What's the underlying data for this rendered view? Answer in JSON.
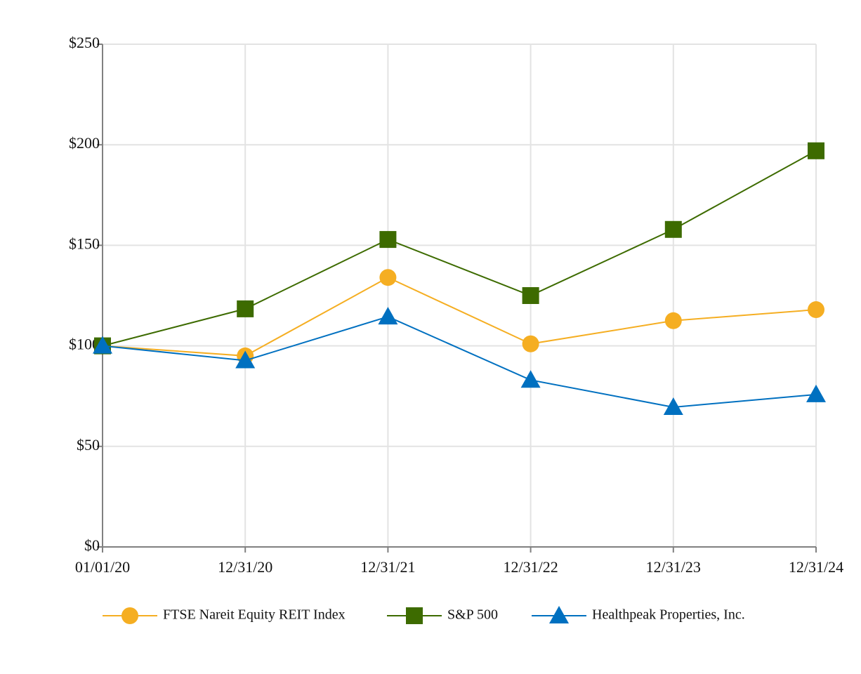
{
  "chart_data": {
    "type": "line",
    "categories": [
      "01/01/20",
      "12/31/20",
      "12/31/21",
      "12/31/22",
      "12/31/23",
      "12/31/24"
    ],
    "series": [
      {
        "name": "FTSE Nareit Equity REIT Index",
        "color": "#f5ae22",
        "marker": "circle",
        "values": [
          100,
          95,
          134,
          101,
          112.5,
          118
        ]
      },
      {
        "name": "S&P 500",
        "color": "#3d6b00",
        "marker": "square",
        "values": [
          100,
          118.4,
          152.9,
          125,
          157.9,
          197
        ]
      },
      {
        "name": "Healthpeak Properties, Inc.",
        "color": "#0070c0",
        "marker": "triangle",
        "values": [
          100,
          92.7,
          114.5,
          83,
          69.5,
          75.8
        ]
      }
    ],
    "ylim": [
      0,
      250
    ],
    "yticks": [
      {
        "value": 0,
        "label": "$0"
      },
      {
        "value": 50,
        "label": "$50"
      },
      {
        "value": 100,
        "label": "$100"
      },
      {
        "value": 150,
        "label": "$150"
      },
      {
        "value": 200,
        "label": "$200"
      },
      {
        "value": 250,
        "label": "$250"
      }
    ],
    "grid": true,
    "legend": "bottom"
  }
}
